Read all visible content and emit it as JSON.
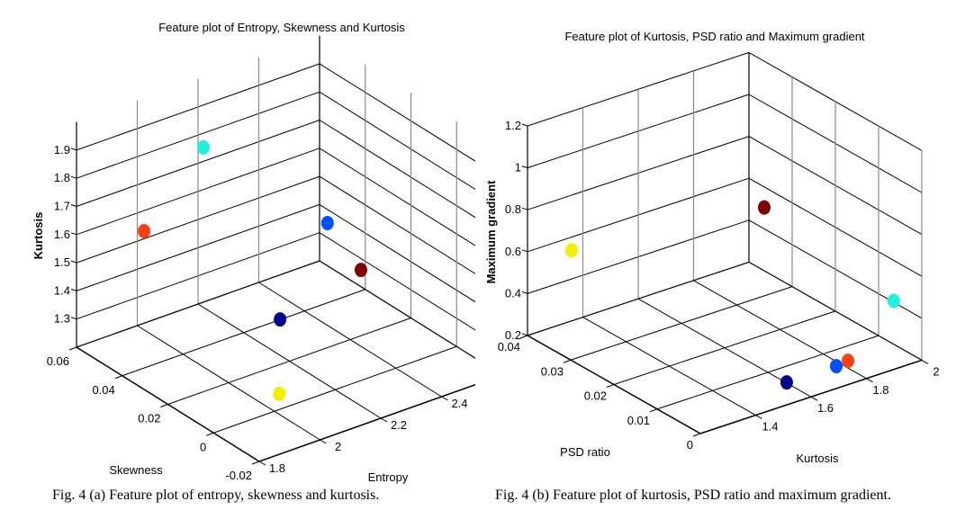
{
  "chart_data": [
    {
      "type": "scatter3d",
      "title": "Feature plot of Entropy, Skewness and Kurtosis",
      "xlabel": "Entropy",
      "ylabel": "Skewness",
      "zlabel": "Kurtosis",
      "xlim": [
        1.8,
        2.6
      ],
      "ylim": [
        -0.02,
        0.06
      ],
      "zlim": [
        1.2,
        2.0
      ],
      "xticks": [
        "1.8",
        "2",
        "2.2",
        "2.4"
      ],
      "xtick_values": [
        1.8,
        2.0,
        2.2,
        2.4
      ],
      "yticks": [
        "-0.02",
        "0",
        "0.02",
        "0.04",
        "0.06"
      ],
      "ytick_values": [
        -0.02,
        0,
        0.02,
        0.04,
        0.06
      ],
      "zticks": [
        "1.3",
        "1.4",
        "1.5",
        "1.6",
        "1.7",
        "1.8",
        "1.9"
      ],
      "ztick_values": [
        1.3,
        1.4,
        1.5,
        1.6,
        1.7,
        1.8,
        1.9
      ],
      "grid": true,
      "points": [
        {
          "x": 2.047,
          "y": 0.0373,
          "z": 1.93,
          "color": "#20F0DC"
        },
        {
          "x": 1.802,
          "y": 0.0307,
          "z": 1.76,
          "color": "#FF4010"
        },
        {
          "x": 2.235,
          "y": 0.008,
          "z": 1.738,
          "color": "#0050FF"
        },
        {
          "x": 2.143,
          "y": -0.0189,
          "z": 1.743,
          "color": "#800000"
        },
        {
          "x": 1.952,
          "y": -0.0089,
          "z": 1.59,
          "color": "#00008C"
        },
        {
          "x": 2.066,
          "y": 0.0066,
          "z": 1.203,
          "color": "#F0F000"
        }
      ],
      "caption": "Fig. 4 (a) Feature plot of entropy, skewness and kurtosis."
    },
    {
      "type": "scatter3d",
      "title": "Feature plot of Kurtosis, PSD ratio and Maximum gradient",
      "xlabel": "Kurtosis",
      "ylabel": "PSD ratio",
      "zlabel": "Maximum gradient",
      "xlim": [
        1.2,
        2.0
      ],
      "ylim": [
        0,
        0.04
      ],
      "zlim": [
        0.2,
        1.2
      ],
      "xticks": [
        "1.4",
        "1.6",
        "1.8",
        "2"
      ],
      "xtick_values": [
        1.4,
        1.6,
        1.8,
        2.0
      ],
      "yticks": [
        "0",
        "0.01",
        "0.02",
        "0.03",
        "0.04"
      ],
      "ytick_values": [
        0,
        0.01,
        0.02,
        0.03,
        0.04
      ],
      "zticks": [
        "0.2",
        "0.4",
        "0.6",
        "0.8",
        "1",
        "1.2"
      ],
      "ztick_values": [
        0.2,
        0.4,
        0.6,
        0.8,
        1.0,
        1.2
      ],
      "grid": true,
      "points": [
        {
          "x": 1.93,
          "y": 0.002,
          "z": 0.49,
          "color": "#20F0DC"
        },
        {
          "x": 1.76,
          "y": 0.0017,
          "z": 0.282,
          "color": "#FF4010"
        },
        {
          "x": 1.738,
          "y": 0.003,
          "z": 0.251,
          "color": "#0050FF"
        },
        {
          "x": 1.743,
          "y": 0.02,
          "z": 0.807,
          "color": "#800000"
        },
        {
          "x": 1.59,
          "y": 0.005,
          "z": 0.215,
          "color": "#00008C"
        },
        {
          "x": 1.203,
          "y": 0.03,
          "z": 0.722,
          "color": "#F0F000"
        }
      ],
      "caption": "Fig. 4 (b) Feature plot of kurtosis, PSD ratio and maximum gradient."
    }
  ]
}
